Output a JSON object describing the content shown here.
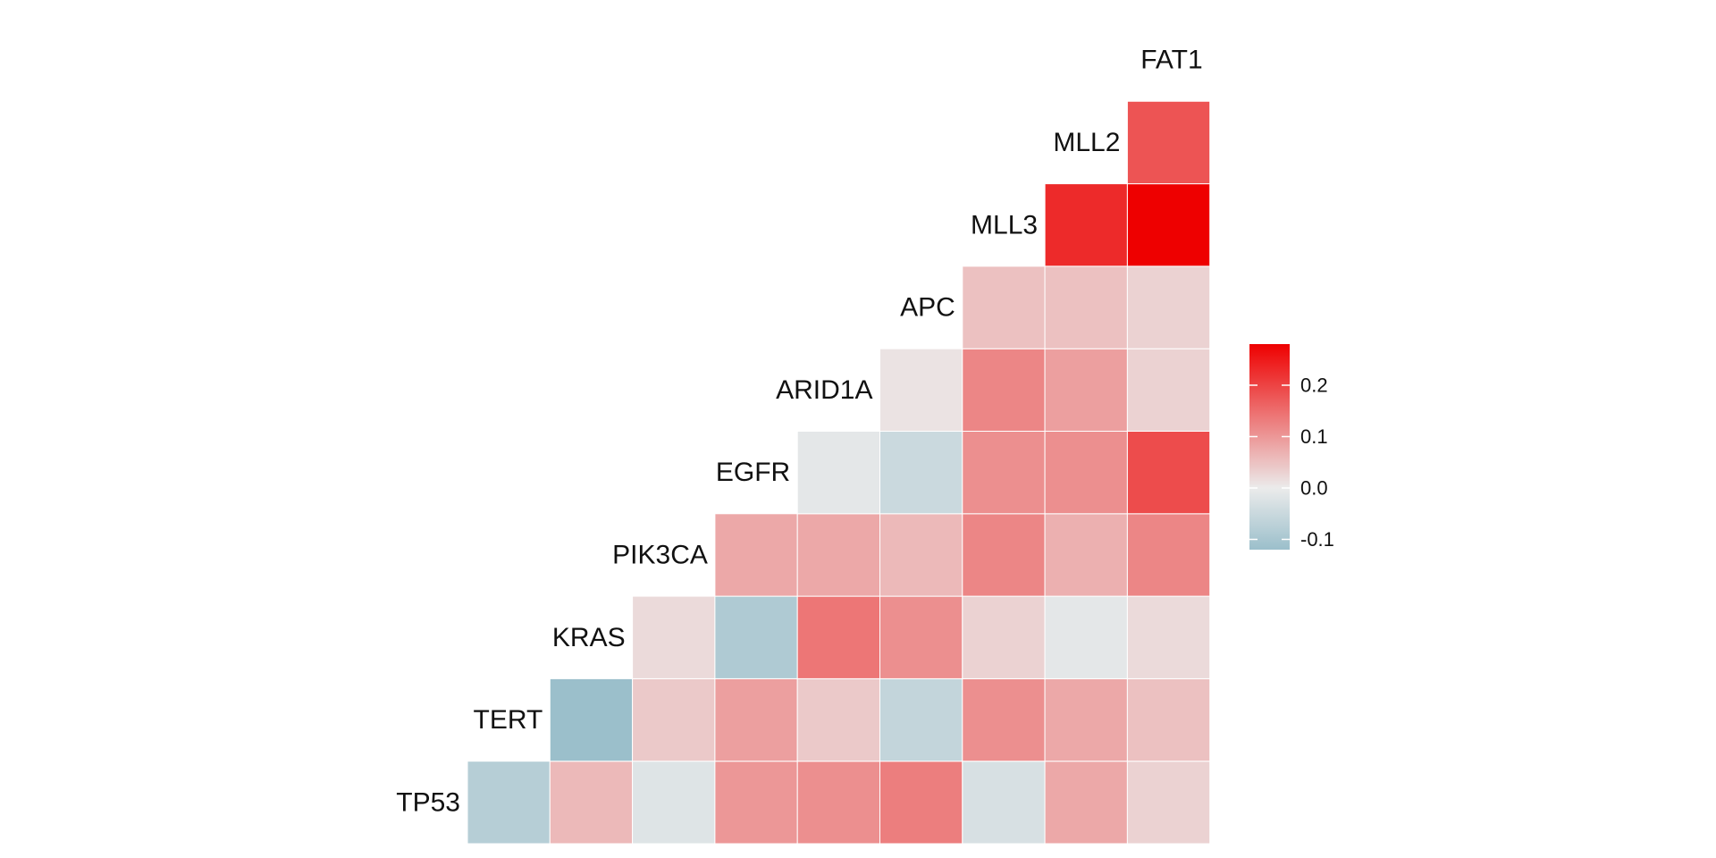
{
  "chart_data": {
    "type": "heatmap",
    "title": "",
    "layout": "lower-triangle correlation matrix, row labels placed on the diagonal",
    "rows": [
      "TP53",
      "TERT",
      "KRAS",
      "PIK3CA",
      "EGFR",
      "ARID1A",
      "APC",
      "MLL3",
      "MLL2",
      "FAT1"
    ],
    "row_values": [
      [
        -0.08,
        0.06,
        -0.02,
        0.1,
        0.11,
        0.13,
        -0.03,
        0.08,
        0.03
      ],
      [
        -0.12,
        0.04,
        0.09,
        0.04,
        -0.06,
        0.11,
        0.08,
        0.05
      ],
      [
        0.02,
        -0.09,
        0.14,
        0.11,
        0.03,
        -0.01,
        0.02
      ],
      [
        0.08,
        0.08,
        0.06,
        0.12,
        0.07,
        0.12
      ],
      [
        -0.01,
        -0.05,
        0.11,
        0.11,
        0.19
      ],
      [
        0.01,
        0.12,
        0.09,
        0.03
      ],
      [
        0.05,
        0.05,
        0.03
      ],
      [
        0.23,
        0.28
      ],
      [
        0.18
      ]
    ],
    "color_scale": {
      "min": -0.12,
      "max": 0.28,
      "low_color": "#9bbfcb",
      "mid_color": "#ebebeb",
      "high_color": "#ee0000",
      "legend_ticks": [
        0.2,
        0.1,
        0.0,
        -0.1
      ],
      "legend_tick_labels": [
        "0.2",
        "0.1",
        "0.0",
        "-0.1"
      ]
    },
    "legend_position": "right",
    "grid": false
  }
}
